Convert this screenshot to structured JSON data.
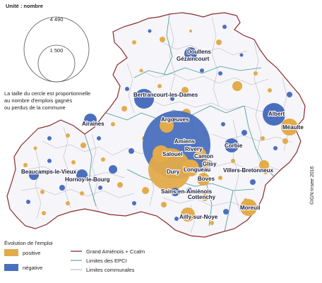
{
  "unit_label": "Unité : nombre",
  "scale": {
    "large_value": "4 490",
    "small_value": "1 500"
  },
  "explanation": [
    "La taille du cercle est proportionnelle",
    "au nombre d'emplois gagnés",
    "ou perdus de la commune"
  ],
  "credit": "©IGN-Insee 2016",
  "legend": {
    "title": "Évolution de l'emploi",
    "positive_label": "positive",
    "negative_label": "négative",
    "boundary_main": "Grand Amiénois + Ccalm",
    "boundary_epci": "Limites des EPCI",
    "boundary_communes": "Limites communales"
  },
  "colors": {
    "positive": "#e3ab4a",
    "negative": "#4a6fbe",
    "main_boundary": "#8b2a2a",
    "epci": "#3c9a95",
    "communes": "#9a9aa8"
  },
  "places": [
    {
      "name": "Doullens"
    },
    {
      "name": "Gézaincourt"
    },
    {
      "name": "Bertrancourt-les-Dames"
    },
    {
      "name": "Airaines"
    },
    {
      "name": "Argœuves"
    },
    {
      "name": "Amiens"
    },
    {
      "name": "Rivery"
    },
    {
      "name": "Camon"
    },
    {
      "name": "Salouel"
    },
    {
      "name": "Glisy"
    },
    {
      "name": "Longueau"
    },
    {
      "name": "Dury"
    },
    {
      "name": "Boves"
    },
    {
      "name": "Sains-en-Amiénois"
    },
    {
      "name": "Cottenchy"
    },
    {
      "name": "Beaucamps-le-Vieux"
    },
    {
      "name": "Hornoy-le-Bourg"
    },
    {
      "name": "Albert"
    },
    {
      "name": "Méaulte"
    },
    {
      "name": "Corbie"
    },
    {
      "name": "Villers-Bretonneux"
    },
    {
      "name": "Moreuil"
    },
    {
      "name": "Ailly-sur-Noye"
    }
  ]
}
